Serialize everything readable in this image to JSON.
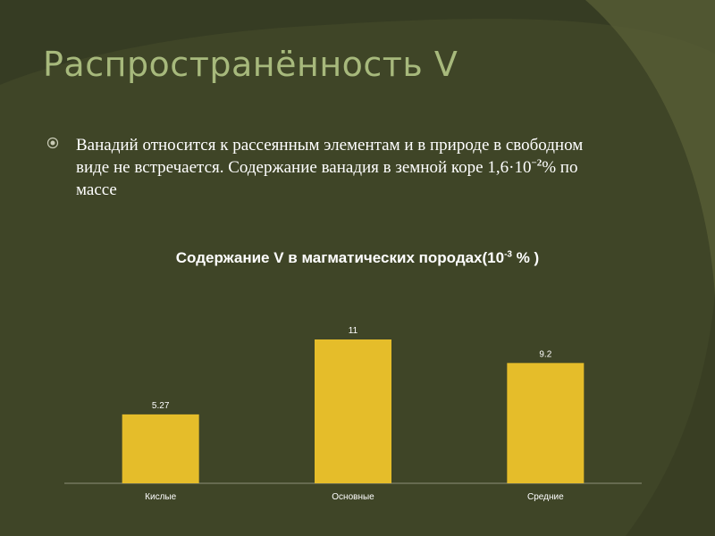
{
  "slide": {
    "title": "Распространённость V",
    "bullet": {
      "text_before": "Ванадий относится к рассеянным элементам и в природе в свободном виде не встречается. Содержание ванадия в земной коре 1,6·10",
      "exponent": "−2",
      "text_after": "% по массе"
    }
  },
  "colors": {
    "background": "#3f4527",
    "title": "#a7b97c",
    "bar": "#e5bd2a",
    "text": "#ffffff"
  },
  "chart_data": {
    "type": "bar",
    "title_parts": {
      "before": "Содержание V в магматических породах(10",
      "exponent": "-3",
      "after": " % )"
    },
    "categories": [
      "Кислые",
      "Основные",
      "Средние"
    ],
    "values": [
      5.27,
      11,
      9.2
    ],
    "data_labels": [
      "5.27",
      "11",
      "9.2"
    ],
    "xlabel": "",
    "ylabel": "",
    "ylim": [
      0,
      11
    ],
    "grid": false,
    "legend": "none"
  }
}
